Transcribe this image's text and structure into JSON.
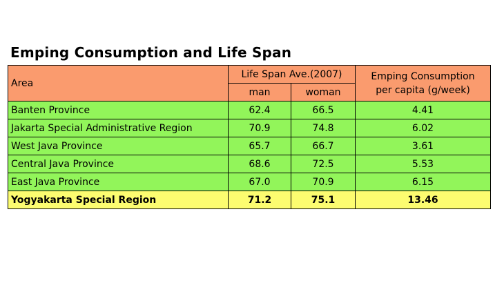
{
  "chart_data": {
    "type": "table",
    "title": "Emping Consumption and Life Span",
    "headers": {
      "area": "Area",
      "life_span": "Life Span Ave.(2007)",
      "man": "man",
      "woman": "woman",
      "consumption_line1": "Emping Consumption",
      "consumption_line2": "per capita (g/week)"
    },
    "rows": [
      {
        "area": "Banten Province",
        "man": "62.4",
        "woman": "66.5",
        "consumption": "4.41"
      },
      {
        "area": "Jakarta Special Administrative Region",
        "man": "70.9",
        "woman": "74.8",
        "consumption": "6.02"
      },
      {
        "area": "West Java Province",
        "man": "65.7",
        "woman": "66.7",
        "consumption": "3.61"
      },
      {
        "area": "Central Java Province",
        "man": "68.6",
        "woman": "72.5",
        "consumption": "5.53"
      },
      {
        "area": "East Java Province",
        "man": "67.0",
        "woman": "70.9",
        "consumption": "6.15"
      }
    ],
    "highlight_row": {
      "area": "Yogyakarta Special Region",
      "man": "71.2",
      "woman": "75.1",
      "consumption": "13.46"
    }
  },
  "colors": {
    "header": "#fa9b6e",
    "rows": "#92f55a",
    "highlight": "#fcfc70"
  }
}
